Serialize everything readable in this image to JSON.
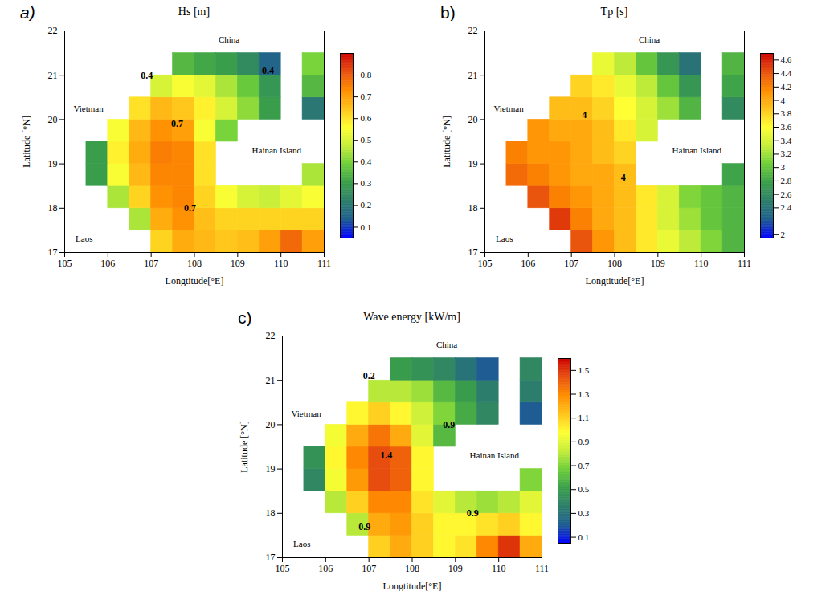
{
  "chart_data": [
    {
      "type": "heatmap",
      "panel": "a)",
      "title": "Hs [m]",
      "x_label": "Longtitude[°E]",
      "y_label": "Latitude [°N]",
      "xlim": [
        105,
        111
      ],
      "ylim": [
        17,
        22
      ],
      "xticks": [
        105,
        106,
        107,
        108,
        109,
        110,
        111
      ],
      "yticks": [
        17,
        18,
        19,
        20,
        21,
        22
      ],
      "x": [
        105.25,
        105.75,
        106.25,
        106.75,
        107.25,
        107.75,
        108.25,
        108.75,
        109.25,
        109.75,
        110.25,
        110.75
      ],
      "y": [
        17.25,
        17.75,
        18.25,
        18.75,
        19.25,
        19.75,
        20.25,
        20.75,
        21.25,
        21.75
      ],
      "cells": [
        [
          null,
          null,
          null,
          null,
          0.62,
          0.68,
          0.66,
          0.64,
          0.65,
          0.7,
          0.78,
          0.7
        ],
        [
          null,
          null,
          null,
          0.45,
          0.68,
          0.72,
          0.65,
          0.62,
          0.62,
          0.62,
          0.62,
          0.62
        ],
        [
          null,
          null,
          0.45,
          0.62,
          0.72,
          0.74,
          0.62,
          0.55,
          0.5,
          0.48,
          0.52,
          0.55
        ],
        [
          null,
          0.3,
          0.55,
          0.66,
          0.74,
          0.74,
          0.6,
          null,
          null,
          null,
          null,
          0.45
        ],
        [
          null,
          0.3,
          0.58,
          0.68,
          0.75,
          0.74,
          0.6,
          null,
          null,
          null,
          null,
          null
        ],
        [
          null,
          null,
          0.55,
          0.66,
          0.72,
          0.7,
          0.55,
          0.4,
          null,
          null,
          null,
          null
        ],
        [
          null,
          null,
          null,
          0.6,
          0.66,
          0.64,
          0.58,
          0.5,
          0.42,
          0.3,
          null,
          0.2
        ],
        [
          null,
          null,
          null,
          null,
          0.5,
          0.55,
          0.52,
          0.45,
          0.38,
          0.28,
          null,
          0.35
        ],
        [
          null,
          null,
          null,
          null,
          null,
          0.35,
          0.32,
          0.3,
          0.25,
          0.15,
          null,
          0.4
        ],
        [
          null,
          null,
          null,
          null,
          null,
          null,
          null,
          null,
          null,
          null,
          null,
          null
        ]
      ],
      "colorbar": {
        "range": [
          0.05,
          0.9
        ],
        "ticks": [
          0.1,
          0.2,
          0.3,
          0.4,
          0.5,
          0.6,
          0.7,
          0.8
        ]
      },
      "annotations": [
        {
          "text": "0.7",
          "x": 107.6,
          "y": 19.9
        },
        {
          "text": "0.7",
          "x": 107.9,
          "y": 18.0
        },
        {
          "text": "0.4",
          "x": 106.9,
          "y": 21.0
        },
        {
          "text": "0.4",
          "x": 109.7,
          "y": 21.1
        }
      ],
      "places": [
        {
          "text": "China",
          "x": 108.8,
          "y": 21.8
        },
        {
          "text": "Vietman",
          "x": 105.55,
          "y": 20.25
        },
        {
          "text": "Laos",
          "x": 105.45,
          "y": 17.3
        },
        {
          "text": "Hainan Island",
          "x": 109.9,
          "y": 19.3
        }
      ],
      "grid": false
    },
    {
      "type": "heatmap",
      "panel": "b)",
      "title": "Tp [s]",
      "x_label": "Longtitude[°E]",
      "y_label": "Latitude [°N]",
      "xlim": [
        105,
        111
      ],
      "ylim": [
        17,
        22
      ],
      "xticks": [
        105,
        106,
        107,
        108,
        109,
        110,
        111
      ],
      "yticks": [
        17,
        18,
        19,
        20,
        21,
        22
      ],
      "x": [
        105.25,
        105.75,
        106.25,
        106.75,
        107.25,
        107.75,
        108.25,
        108.75,
        109.25,
        109.75,
        110.25,
        110.75
      ],
      "y": [
        17.25,
        17.75,
        18.25,
        18.75,
        19.25,
        19.75,
        20.25,
        20.75,
        21.25,
        21.75
      ],
      "cells": [
        [
          null,
          null,
          null,
          null,
          4.4,
          4.1,
          3.9,
          3.7,
          3.5,
          3.3,
          3.1,
          2.9
        ],
        [
          null,
          null,
          null,
          4.5,
          4.2,
          4.0,
          3.9,
          3.7,
          3.4,
          3.2,
          3.0,
          2.9
        ],
        [
          null,
          null,
          4.4,
          4.2,
          4.1,
          4.0,
          3.9,
          3.7,
          3.4,
          3.1,
          3.0,
          2.9
        ],
        [
          null,
          4.3,
          4.2,
          4.1,
          4.0,
          4.0,
          3.9,
          null,
          null,
          null,
          null,
          2.8
        ],
        [
          null,
          4.2,
          4.1,
          4.1,
          4.0,
          3.9,
          3.8,
          null,
          null,
          null,
          null,
          null
        ],
        [
          null,
          null,
          4.1,
          4.0,
          4.0,
          3.9,
          3.7,
          3.4,
          null,
          null,
          null,
          null
        ],
        [
          null,
          null,
          null,
          3.9,
          3.9,
          3.8,
          3.6,
          3.4,
          3.2,
          2.9,
          null,
          2.6
        ],
        [
          null,
          null,
          null,
          null,
          3.8,
          3.7,
          3.5,
          3.3,
          3.0,
          2.7,
          null,
          2.8
        ],
        [
          null,
          null,
          null,
          null,
          null,
          3.5,
          3.3,
          3.0,
          2.7,
          2.4,
          null,
          2.9
        ],
        [
          null,
          null,
          null,
          null,
          null,
          null,
          null,
          null,
          null,
          null,
          null,
          null
        ]
      ],
      "colorbar": {
        "range": [
          1.95,
          4.7
        ],
        "ticks": [
          2,
          2.4,
          2.6,
          2.8,
          3,
          3.2,
          3.4,
          3.6,
          3.8,
          4,
          4.2,
          4.4,
          4.6
        ]
      },
      "annotations": [
        {
          "text": "4",
          "x": 107.3,
          "y": 20.1
        },
        {
          "text": "4",
          "x": 108.2,
          "y": 18.7
        }
      ],
      "places": [
        {
          "text": "China",
          "x": 108.8,
          "y": 21.8
        },
        {
          "text": "Vietman",
          "x": 105.55,
          "y": 20.25
        },
        {
          "text": "Laos",
          "x": 105.45,
          "y": 17.3
        },
        {
          "text": "Hainan Island",
          "x": 109.9,
          "y": 19.3
        }
      ],
      "grid": false
    },
    {
      "type": "heatmap",
      "panel": "c)",
      "title": "Wave energy [kW/m]",
      "x_label": "Longtitude[°E]",
      "y_label": "Latitude [°N]",
      "xlim": [
        105,
        111
      ],
      "ylim": [
        17,
        22
      ],
      "xticks": [
        105,
        106,
        107,
        108,
        109,
        110,
        111
      ],
      "yticks": [
        17,
        18,
        19,
        20,
        21,
        22
      ],
      "x": [
        105.25,
        105.75,
        106.25,
        106.75,
        107.25,
        107.75,
        108.25,
        108.75,
        109.25,
        109.75,
        110.25,
        110.75
      ],
      "y": [
        17.25,
        17.75,
        18.25,
        18.75,
        19.25,
        19.75,
        20.25,
        20.75,
        21.25,
        21.75
      ],
      "cells": [
        [
          null,
          null,
          null,
          null,
          1.1,
          1.2,
          1.1,
          1.0,
          1.05,
          1.3,
          1.5,
          1.2
        ],
        [
          null,
          null,
          null,
          0.8,
          1.2,
          1.25,
          1.1,
          1.0,
          1.0,
          1.05,
          1.1,
          1.0
        ],
        [
          null,
          null,
          0.8,
          1.1,
          1.3,
          1.3,
          1.05,
          0.9,
          0.8,
          0.75,
          0.8,
          0.9
        ],
        [
          null,
          0.4,
          0.95,
          1.25,
          1.45,
          1.4,
          1.0,
          null,
          null,
          null,
          null,
          0.7
        ],
        [
          null,
          0.45,
          1.0,
          1.3,
          1.45,
          1.4,
          1.0,
          null,
          null,
          null,
          null,
          null
        ],
        [
          null,
          null,
          0.95,
          1.2,
          1.35,
          1.2,
          0.9,
          0.6,
          null,
          null,
          null,
          null
        ],
        [
          null,
          null,
          null,
          1.0,
          1.1,
          1.0,
          0.85,
          0.7,
          0.55,
          0.4,
          null,
          0.2
        ],
        [
          null,
          null,
          null,
          null,
          0.8,
          0.8,
          0.75,
          0.6,
          0.5,
          0.35,
          null,
          0.35
        ],
        [
          null,
          null,
          null,
          null,
          null,
          0.5,
          0.45,
          0.4,
          0.3,
          0.2,
          null,
          0.4
        ],
        [
          null,
          null,
          null,
          null,
          null,
          null,
          null,
          null,
          null,
          null,
          null,
          null
        ]
      ],
      "colorbar": {
        "range": [
          0.05,
          1.6
        ],
        "ticks": [
          0.1,
          0.3,
          0.5,
          0.7,
          0.9,
          1.1,
          1.3,
          1.5
        ]
      },
      "annotations": [
        {
          "text": "1.4",
          "x": 107.4,
          "y": 19.3
        },
        {
          "text": "0.9",
          "x": 108.85,
          "y": 20.0
        },
        {
          "text": "0.9",
          "x": 109.4,
          "y": 18.0
        },
        {
          "text": "0.9",
          "x": 106.9,
          "y": 17.7
        },
        {
          "text": "0.2",
          "x": 107.0,
          "y": 21.1
        }
      ],
      "places": [
        {
          "text": "China",
          "x": 108.8,
          "y": 21.8
        },
        {
          "text": "Vietman",
          "x": 105.55,
          "y": 20.25
        },
        {
          "text": "Laos",
          "x": 105.45,
          "y": 17.3
        },
        {
          "text": "Hainan Island",
          "x": 109.9,
          "y": 19.3
        }
      ],
      "grid": false
    }
  ]
}
